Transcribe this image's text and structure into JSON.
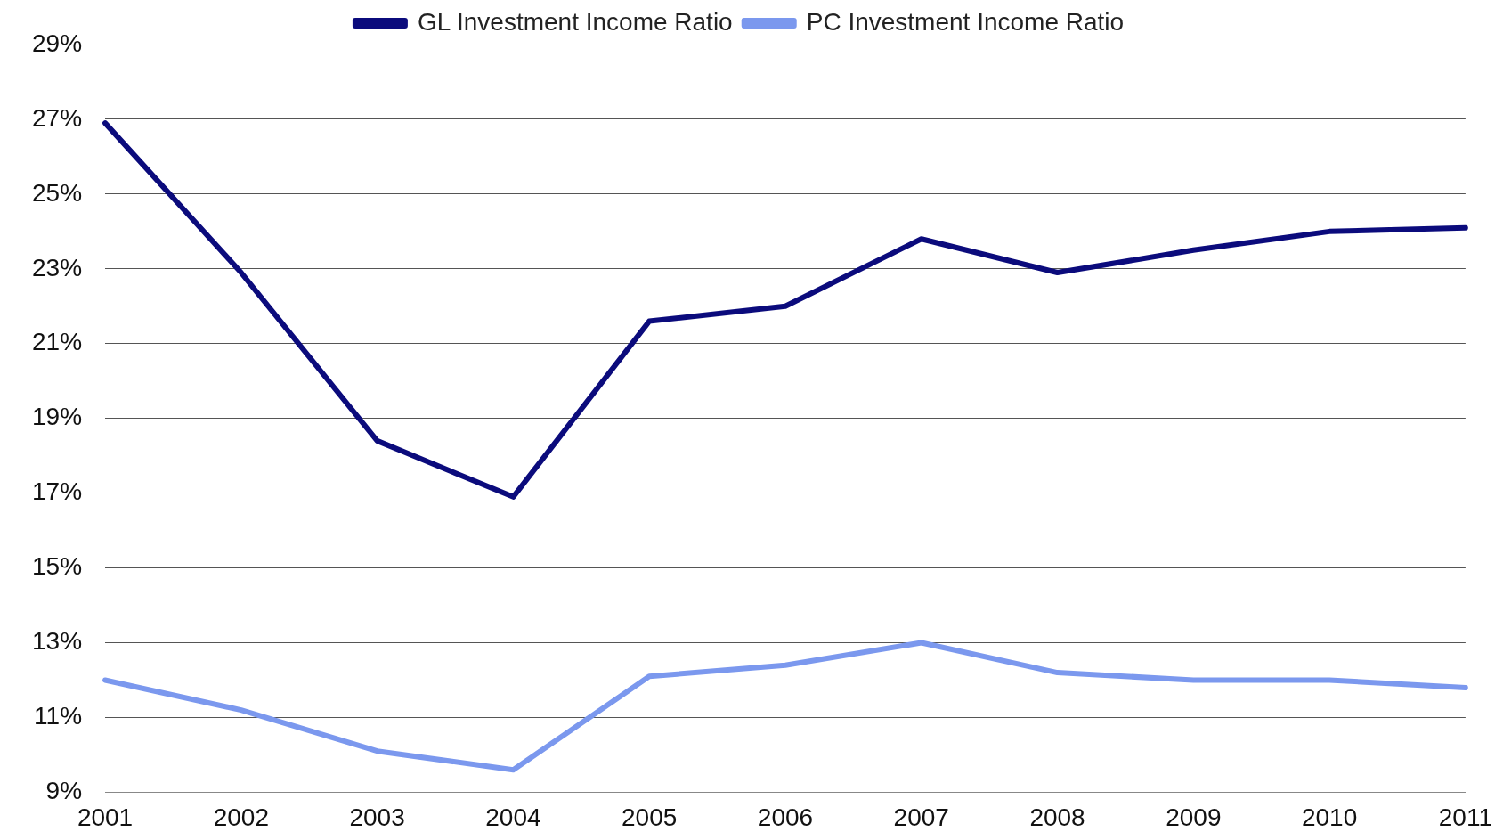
{
  "chart_data": {
    "type": "line",
    "categories": [
      "2001",
      "2002",
      "2003",
      "2004",
      "2005",
      "2006",
      "2007",
      "2008",
      "2009",
      "2010",
      "2011"
    ],
    "series": [
      {
        "name": "GL Investment Income Ratio",
        "color": "#0b0b7c",
        "values": [
          26.9,
          22.9,
          18.4,
          16.9,
          21.6,
          22.0,
          23.8,
          22.9,
          23.5,
          24.0,
          24.1
        ]
      },
      {
        "name": "PC Investment Income Ratio",
        "color": "#7b98ee",
        "values": [
          12.0,
          11.2,
          10.1,
          9.6,
          12.1,
          12.4,
          13.0,
          12.2,
          12.0,
          12.0,
          11.8
        ]
      }
    ],
    "ylim": [
      9,
      29
    ],
    "yticks": [
      {
        "value": 9,
        "label": "9%"
      },
      {
        "value": 11,
        "label": "11%"
      },
      {
        "value": 13,
        "label": "13%"
      },
      {
        "value": 15,
        "label": "15%"
      },
      {
        "value": 17,
        "label": "17%"
      },
      {
        "value": 19,
        "label": "19%"
      },
      {
        "value": 21,
        "label": "21%"
      },
      {
        "value": 23,
        "label": "23%"
      },
      {
        "value": 25,
        "label": "25%"
      },
      {
        "value": 27,
        "label": "27%"
      },
      {
        "value": 29,
        "label": "29%"
      }
    ],
    "grid": "y",
    "legend": "top",
    "marker": "none",
    "line_style": "solid"
  }
}
